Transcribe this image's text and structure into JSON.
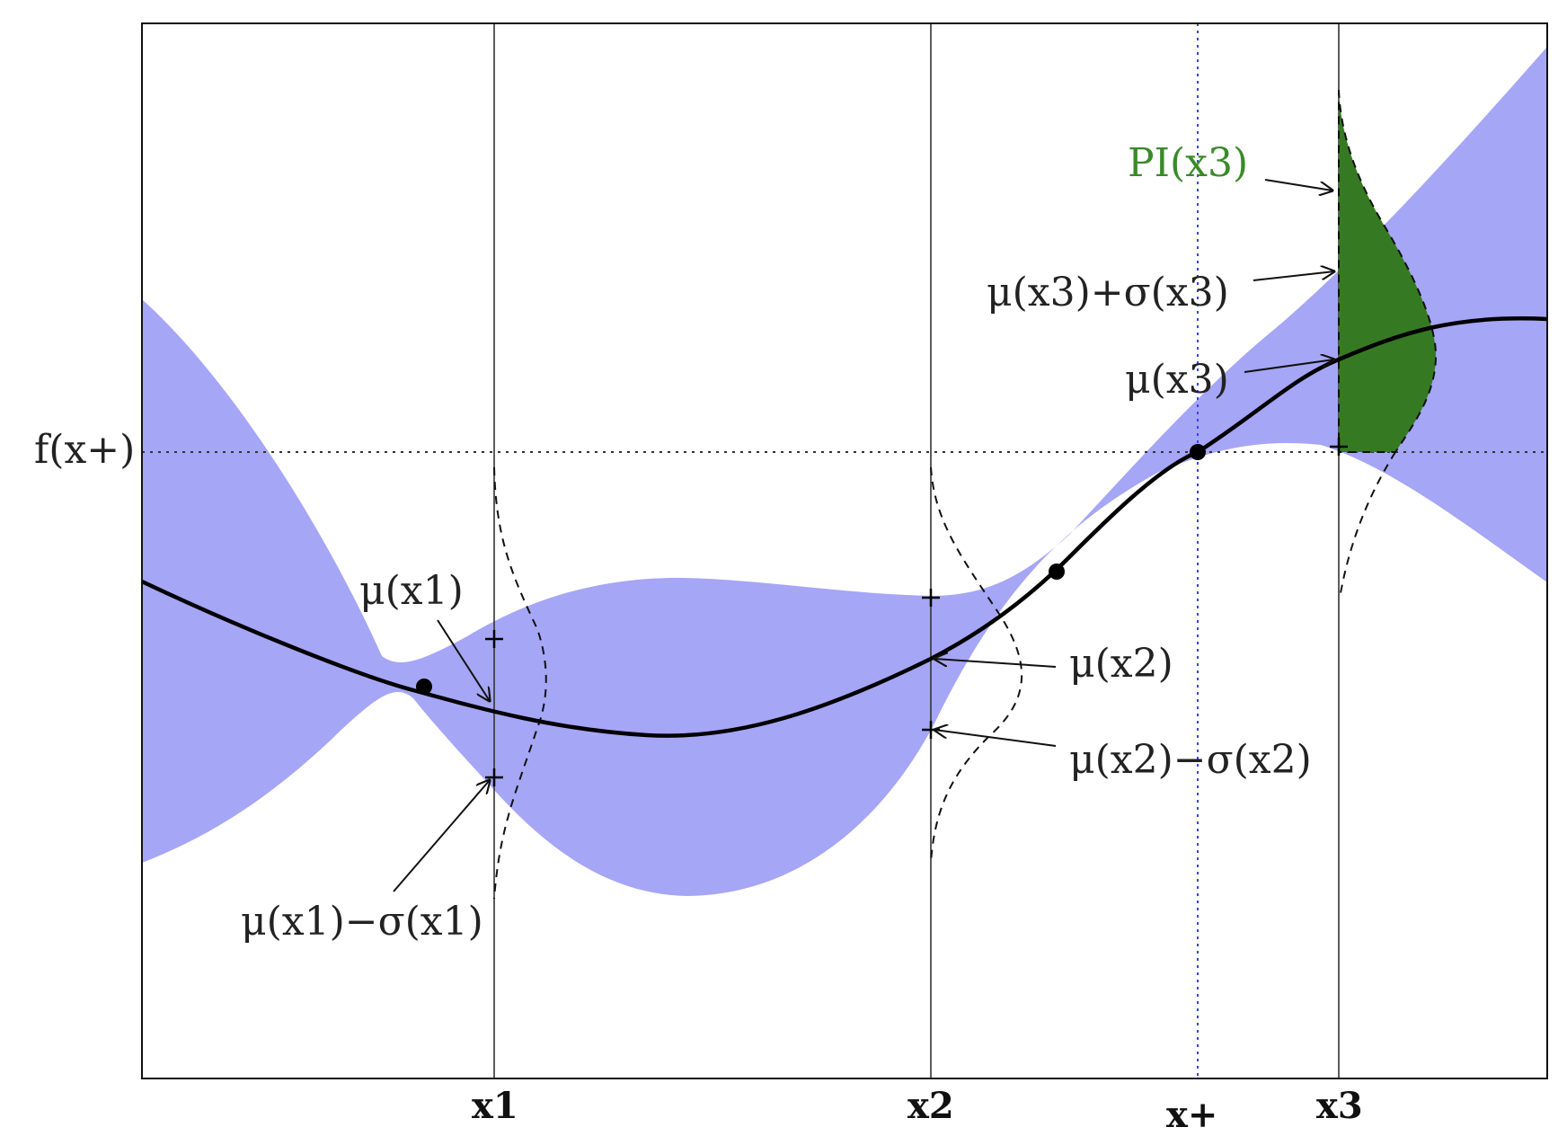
{
  "colors": {
    "band": "#a6a6f6",
    "pi_fill": "#357a22",
    "pi_text": "#3a8a2a",
    "best_line": "#3344ee",
    "curve": "#000000"
  },
  "y_label": "f(x+)",
  "x_ticks": [
    {
      "id": "x1",
      "label": "x1"
    },
    {
      "id": "x2",
      "label": "x2"
    },
    {
      "id": "xplus",
      "label": "x+"
    },
    {
      "id": "x3",
      "label": "x3"
    }
  ],
  "annotations": {
    "pi_x3": "PI(x3)",
    "mu_x3_plus_sigma": "μ(x3)+σ(x3)",
    "mu_x3": "μ(x3)",
    "mu_x1": "μ(x1)",
    "mu_x2": "μ(x2)",
    "mu_x2_minus_sigma": "μ(x2)−σ(x2)",
    "mu_x1_minus_sigma": "μ(x1)−σ(x1)"
  }
}
